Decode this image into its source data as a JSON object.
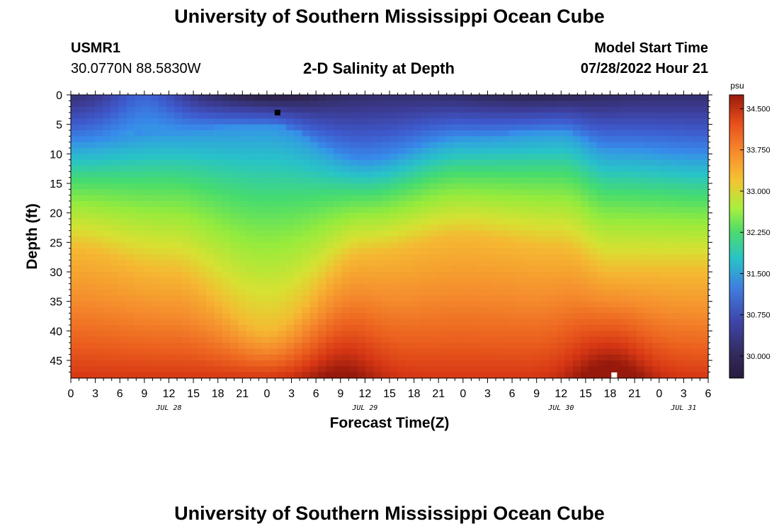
{
  "header": {
    "title": "University of Southern Mississippi Ocean Cube",
    "station_id": "USMR1",
    "coordinates": "30.0770N  88.5830W",
    "subtitle": "2-D Salinity at Depth",
    "model_label": "Model Start Time",
    "model_start": "07/28/2022 Hour 21"
  },
  "footer": {
    "title": "University of Southern Mississippi Ocean Cube"
  },
  "chart_data": {
    "type": "heatmap",
    "title": "2-D Salinity at Depth",
    "xlabel": "Forecast Time(Z)",
    "ylabel": "Depth (ft)",
    "x_tick_labels": [
      "0",
      "3",
      "6",
      "9",
      "12",
      "15",
      "18",
      "21",
      "0",
      "3",
      "6",
      "9",
      "12",
      "15",
      "18",
      "21",
      "0",
      "3",
      "6",
      "9",
      "12",
      "15",
      "18",
      "21",
      "0",
      "3",
      "6"
    ],
    "x_range_hours": [
      0,
      78
    ],
    "date_labels": [
      {
        "text": "JUL 28",
        "hour": 12
      },
      {
        "text": "JUL 29",
        "hour": 36
      },
      {
        "text": "JUL 30",
        "hour": 60
      },
      {
        "text": "JUL 31",
        "hour": 75
      }
    ],
    "y_ticks": [
      0,
      5,
      10,
      15,
      20,
      25,
      30,
      35,
      40,
      45
    ],
    "y_range_ft": [
      0,
      48
    ],
    "colorbar": {
      "unit": "psu",
      "ticks": [
        "34.500",
        "33.750",
        "33.000",
        "32.250",
        "31.500",
        "30.750",
        "30.000"
      ],
      "tick_values": [
        34.5,
        33.75,
        33.0,
        32.25,
        31.5,
        30.75,
        30.0
      ],
      "range": [
        29.6,
        34.75
      ]
    },
    "markers": [
      {
        "name": "min-marker",
        "hour": 25.3,
        "depth": 3,
        "color": "#000000"
      },
      {
        "name": "max-marker",
        "hour": 66.5,
        "depth": 47.8,
        "color": "#ffffff"
      }
    ],
    "field_description": {
      "surface_fresh_layer_base_ft": [
        [
          0,
          8
        ],
        [
          12,
          6
        ],
        [
          24,
          5
        ],
        [
          36,
          11
        ],
        [
          48,
          7
        ],
        [
          60,
          6
        ],
        [
          66,
          9
        ],
        [
          78,
          10
        ]
      ],
      "deep_salty_top_ft": [
        [
          0,
          26
        ],
        [
          12,
          30
        ],
        [
          24,
          40
        ],
        [
          36,
          27
        ],
        [
          48,
          24
        ],
        [
          60,
          26
        ],
        [
          66,
          30
        ],
        [
          78,
          30
        ]
      ],
      "surface_salinity_min_psu": 29.7,
      "bottom_salinity_max_psu": 34.7
    }
  }
}
